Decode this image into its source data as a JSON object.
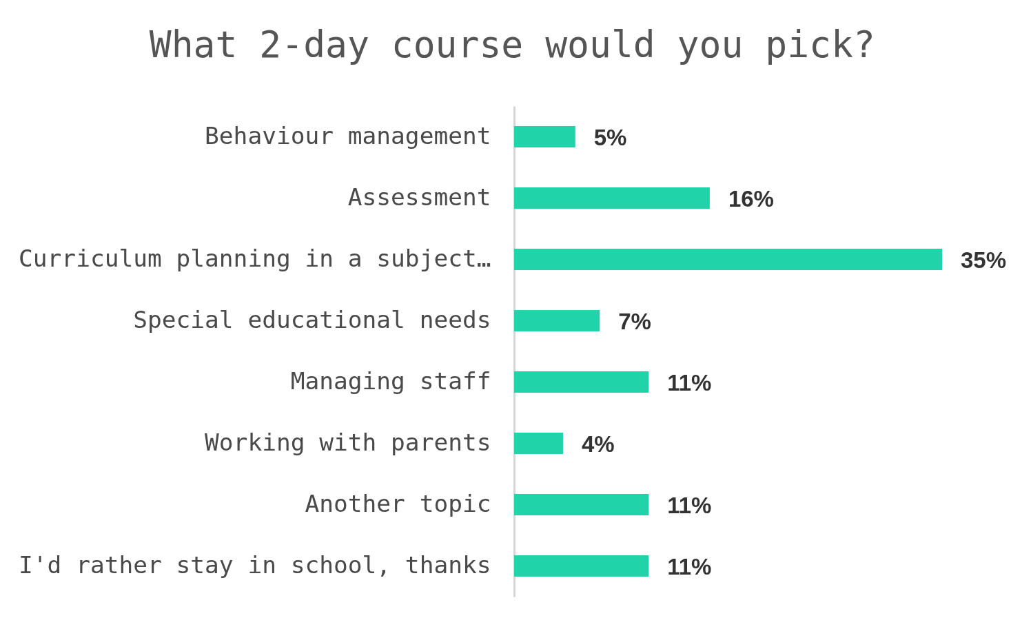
{
  "chart_data": {
    "type": "bar",
    "title": "What 2-day course would you pick?",
    "orientation": "horizontal",
    "tick_labels": "y",
    "color": "#21d3a9",
    "categories": [
      "Behaviour management",
      "Assessment",
      "Curriculum planning in a subject…",
      "Special educational needs",
      "Managing staff",
      "Working with parents",
      "Another topic",
      "I'd rather stay in school, thanks"
    ],
    "values": [
      5,
      16,
      35,
      7,
      11,
      4,
      11,
      11
    ],
    "value_labels": [
      "5%",
      "16%",
      "35%",
      "7%",
      "11%",
      "4%",
      "11%",
      "11%"
    ]
  }
}
